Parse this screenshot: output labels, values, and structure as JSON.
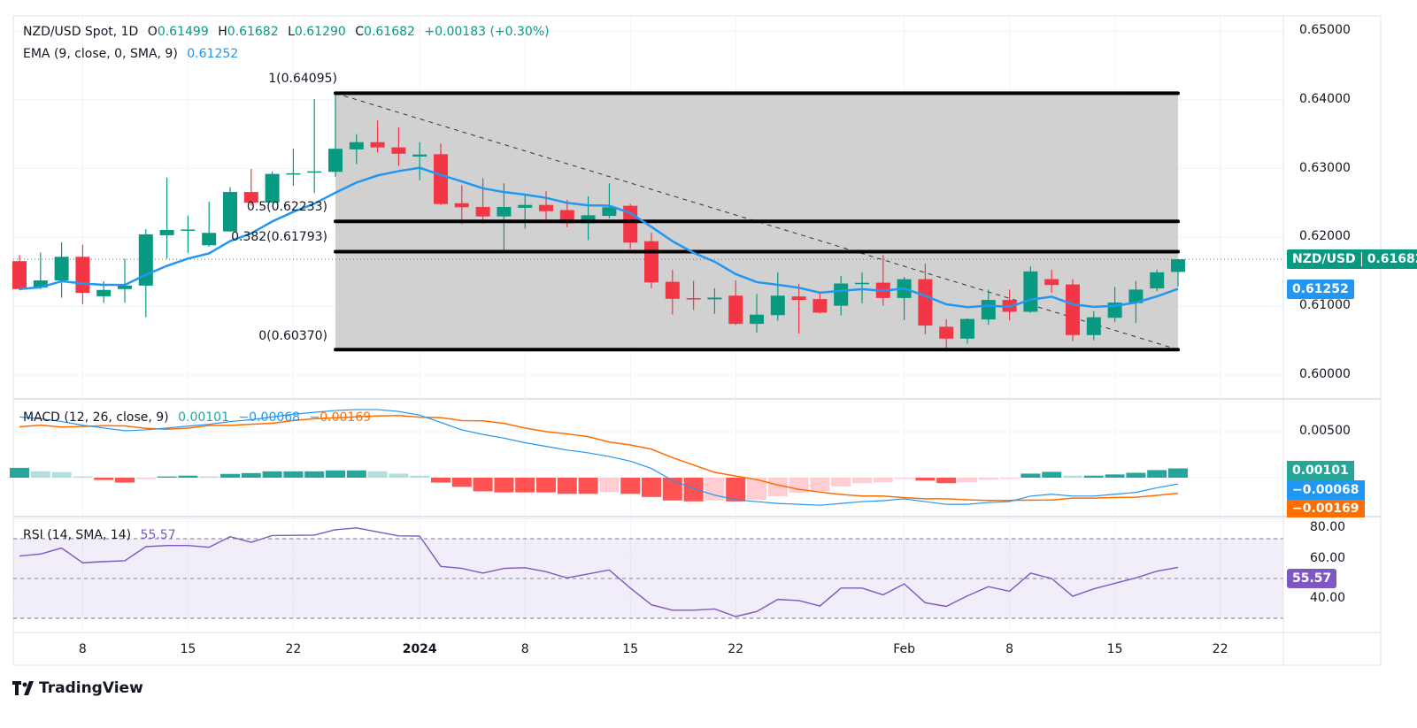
{
  "header": {
    "symbol": "NZD/USD Spot, 1D",
    "open_label": "O",
    "open": "0.61499",
    "high_label": "H",
    "high": "0.61682",
    "low_label": "L",
    "low": "0.61290",
    "close_label": "C",
    "close": "0.61682",
    "change": "+0.00183 (+0.30%)"
  },
  "ema_legend": {
    "label": "EMA (9, close, 0, SMA, 9)",
    "value": "0.61252"
  },
  "macd_legend": {
    "label": "MACD (12, 26, close, 9)",
    "hist": "0.00101",
    "macd": "−0.00068",
    "signal": "−0.00169"
  },
  "rsi_legend": {
    "label": "RSI (14, SMA, 14)",
    "value": "55.57"
  },
  "price_tag": {
    "symbol": "NZD/USD",
    "value": "0.61682"
  },
  "ema_tag": "0.61252",
  "macd_tags": {
    "hist": "0.00101",
    "macd": "−0.00068",
    "signal": "−0.00169"
  },
  "rsi_tag": "55.57",
  "fib_labels": {
    "l1": "1(0.64095)",
    "l05": "0.5(0.62233)",
    "l0382": "0.382(0.61793)",
    "l0": "0(0.60370)"
  },
  "branding": "TradingView",
  "colors": {
    "up": "#089981",
    "down": "#f23645",
    "ema": "#2196f3",
    "macd": "#2196f3",
    "signal": "#ff6d00",
    "rsi": "#7e57c2",
    "hist_up_strong": "#26a69a",
    "hist_up_weak": "#b2dfdb",
    "hist_down_strong": "#ff5252",
    "hist_down_weak": "#ffcdd2"
  },
  "chart_data": {
    "type": "candlestick",
    "symbol": "NZD/USD",
    "interval": "1D",
    "price_axis": {
      "ticks": [
        "0.65000",
        "0.64000",
        "0.63000",
        "0.62000",
        "0.61000",
        "0.60000"
      ],
      "range": [
        0.6,
        0.65
      ]
    },
    "time_axis": {
      "ticks": [
        {
          "label": "8",
          "date": "2023-12-08"
        },
        {
          "label": "15",
          "date": "2023-12-15"
        },
        {
          "label": "22",
          "date": "2023-12-22"
        },
        {
          "label": "2024",
          "date": "2024-01-01"
        },
        {
          "label": "8",
          "date": "2024-01-08"
        },
        {
          "label": "15",
          "date": "2024-01-15"
        },
        {
          "label": "22",
          "date": "2024-01-22"
        },
        {
          "label": "Feb",
          "date": "2024-02-01"
        },
        {
          "label": "8",
          "date": "2024-02-08"
        },
        {
          "label": "15",
          "date": "2024-02-15"
        },
        {
          "label": "22",
          "date": "2024-02-22"
        }
      ]
    },
    "candles_fields": [
      "date",
      "open",
      "high",
      "low",
      "close"
    ],
    "candles": [
      [
        "2023-12-05",
        0.61656,
        0.61744,
        0.6123,
        0.6125
      ],
      [
        "2023-12-06",
        0.61271,
        0.61781,
        0.6125,
        0.61375
      ],
      [
        "2023-12-07",
        0.61375,
        0.61932,
        0.61124,
        0.61718
      ],
      [
        "2023-12-08",
        0.61718,
        0.61894,
        0.61032,
        0.61195
      ],
      [
        "2023-12-11",
        0.61145,
        0.61363,
        0.61049,
        0.61237
      ],
      [
        "2023-12-12",
        0.6125,
        0.61689,
        0.61049,
        0.613
      ],
      [
        "2023-12-13",
        0.613,
        0.6212,
        0.6084,
        0.62045
      ],
      [
        "2023-12-14",
        0.62032,
        0.62869,
        0.61689,
        0.62108
      ],
      [
        "2023-12-15",
        0.62108,
        0.62317,
        0.61773,
        0.62115
      ],
      [
        "2023-12-18",
        0.61886,
        0.62518,
        0.61865,
        0.62066
      ],
      [
        "2023-12-19",
        0.62087,
        0.62731,
        0.62087,
        0.6266
      ],
      [
        "2023-12-20",
        0.6266,
        0.62995,
        0.62463,
        0.62505
      ],
      [
        "2023-12-21",
        0.62505,
        0.62957,
        0.62505,
        0.62923
      ],
      [
        "2023-12-22",
        0.62923,
        0.63288,
        0.6275,
        0.62932
      ],
      [
        "2023-12-25",
        0.62957,
        0.64011,
        0.62643,
        0.6296
      ],
      [
        "2023-12-26",
        0.62953,
        0.64095,
        0.62882,
        0.63288
      ],
      [
        "2023-12-27",
        0.63279,
        0.63501,
        0.63066,
        0.63384
      ],
      [
        "2023-12-28",
        0.63384,
        0.63698,
        0.63233,
        0.63308
      ],
      [
        "2023-12-29",
        0.63308,
        0.63601,
        0.63041,
        0.63216
      ],
      [
        "2024-01-01",
        0.63175,
        0.63384,
        0.62831,
        0.63204
      ],
      [
        "2024-01-02",
        0.63209,
        0.63363,
        0.62472,
        0.62485
      ],
      [
        "2024-01-03",
        0.62497,
        0.62757,
        0.62192,
        0.62438
      ],
      [
        "2024-01-04",
        0.62443,
        0.62861,
        0.622,
        0.62305
      ],
      [
        "2024-01-05",
        0.62305,
        0.62786,
        0.61816,
        0.62443
      ],
      [
        "2024-01-08",
        0.62431,
        0.6261,
        0.62129,
        0.62472
      ],
      [
        "2024-01-09",
        0.62472,
        0.62673,
        0.62234,
        0.62381
      ],
      [
        "2024-01-10",
        0.62397,
        0.62547,
        0.62149,
        0.62205
      ],
      [
        "2024-01-11",
        0.62205,
        0.62597,
        0.61961,
        0.62322
      ],
      [
        "2024-01-12",
        0.62313,
        0.62786,
        0.62275,
        0.62438
      ],
      [
        "2024-01-15",
        0.6246,
        0.62485,
        0.61836,
        0.61924
      ],
      [
        "2024-01-16",
        0.61945,
        0.62067,
        0.61258,
        0.61346
      ],
      [
        "2024-01-17",
        0.61355,
        0.61527,
        0.60882,
        0.61108
      ],
      [
        "2024-01-18",
        0.61117,
        0.61368,
        0.60945,
        0.611
      ],
      [
        "2024-01-19",
        0.611,
        0.61263,
        0.6089,
        0.61125
      ],
      [
        "2024-01-22",
        0.61154,
        0.61376,
        0.60727,
        0.60744
      ],
      [
        "2024-01-23",
        0.60744,
        0.61179,
        0.60614,
        0.60878
      ],
      [
        "2024-01-24",
        0.6087,
        0.61493,
        0.6079,
        0.61154
      ],
      [
        "2024-01-25",
        0.61142,
        0.61326,
        0.60602,
        0.61091
      ],
      [
        "2024-01-26",
        0.61104,
        0.61196,
        0.60895,
        0.60907
      ],
      [
        "2024-01-29",
        0.61007,
        0.61439,
        0.60865,
        0.6133
      ],
      [
        "2024-01-30",
        0.61334,
        0.61493,
        0.61041,
        0.6134
      ],
      [
        "2024-01-31",
        0.61342,
        0.61744,
        0.61007,
        0.6112
      ],
      [
        "2024-02-01",
        0.6112,
        0.61426,
        0.60799,
        0.61393
      ],
      [
        "2024-02-02",
        0.61393,
        0.61619,
        0.60593,
        0.60719
      ],
      [
        "2024-02-05",
        0.60702,
        0.60812,
        0.60372,
        0.6053
      ],
      [
        "2024-02-06",
        0.6053,
        0.60824,
        0.60455,
        0.60815
      ],
      [
        "2024-02-07",
        0.60807,
        0.61242,
        0.60731,
        0.61091
      ],
      [
        "2024-02-08",
        0.61091,
        0.61242,
        0.60794,
        0.60919
      ],
      [
        "2024-02-09",
        0.60919,
        0.61581,
        0.60907,
        0.61506
      ],
      [
        "2024-02-12",
        0.61393,
        0.61531,
        0.61196,
        0.61309
      ],
      [
        "2024-02-13",
        0.61317,
        0.61393,
        0.60493,
        0.60581
      ],
      [
        "2024-02-14",
        0.60581,
        0.60929,
        0.60505,
        0.6084
      ],
      [
        "2024-02-15",
        0.60832,
        0.6128,
        0.60769,
        0.61054
      ],
      [
        "2024-02-16",
        0.61045,
        0.61368,
        0.60756,
        0.61242
      ],
      [
        "2024-02-19",
        0.61259,
        0.61531,
        0.61217,
        0.61493
      ],
      [
        "2024-02-20",
        0.61499,
        0.61682,
        0.6129,
        0.61682
      ]
    ],
    "ema": {
      "period": 9,
      "last": 0.61252
    },
    "current_price": 0.61682,
    "fibonacci": {
      "from_date": "2023-12-26",
      "to_date": "2024-02-20",
      "levels": [
        {
          "ratio": 1,
          "price": 0.64095
        },
        {
          "ratio": 0.5,
          "price": 0.62233
        },
        {
          "ratio": 0.382,
          "price": 0.61793
        },
        {
          "ratio": 0,
          "price": 0.6037
        }
      ]
    },
    "macd": {
      "axis_ticks": [
        "0.00500"
      ],
      "range": [
        -0.0045,
        0.0085
      ],
      "macd_line": [
        0.0066,
        0.0064,
        0.0061,
        0.0057,
        0.0054,
        0.0051,
        0.0052,
        0.0054,
        0.0056,
        0.0058,
        0.0061,
        0.0063,
        0.0066,
        0.0069,
        0.0071,
        0.0073,
        0.0074,
        0.0074,
        0.0072,
        0.0068,
        0.006,
        0.0052,
        0.0047,
        0.0043,
        0.0038,
        0.0034,
        0.003,
        0.0027,
        0.0023,
        0.0018,
        0.001,
        -0.0003,
        -0.0012,
        -0.0019,
        -0.0024,
        -0.0026,
        -0.0028,
        -0.0029,
        -0.003,
        -0.0028,
        -0.0026,
        -0.0025,
        -0.0023,
        -0.0026,
        -0.0029,
        -0.0029,
        -0.0027,
        -0.0026,
        -0.002,
        -0.0018,
        -0.002,
        -0.002,
        -0.0018,
        -0.0016,
        -0.0011,
        -0.00068
      ],
      "histogram": [
        0.00107,
        0.00069,
        0.0006,
        0.00013,
        -0.00025,
        -0.00053,
        -0.00016,
        0.00013,
        0.00022,
        0.00013,
        0.00041,
        0.0005,
        0.00069,
        0.00069,
        0.00069,
        0.00079,
        0.00079,
        0.00069,
        0.00044,
        0.00022,
        -0.00053,
        -0.001,
        -0.00148,
        -0.0016,
        -0.0016,
        -0.0016,
        -0.00176,
        -0.00176,
        -0.00157,
        -0.00176,
        -0.0021,
        -0.00248,
        -0.00258,
        -0.00248,
        -0.00258,
        -0.00239,
        -0.00201,
        -0.00163,
        -0.00144,
        -0.00097,
        -0.0006,
        -0.0005,
        -0.00013,
        -0.00031,
        -0.0006,
        -0.0005,
        -0.00022,
        -0.00013,
        0.00044,
        0.00063,
        0.00022,
        0.00022,
        0.00035,
        0.00053,
        0.00082,
        0.00101
      ]
    },
    "rsi": {
      "axis_ticks": [
        "80.00",
        "60.00",
        "40.00"
      ],
      "bands": [
        30,
        70
      ],
      "range": [
        20,
        85
      ],
      "values": [
        61.3,
        62.3,
        65.3,
        57.9,
        58.5,
        58.9,
        66.0,
        66.6,
        66.6,
        65.7,
        71.0,
        68.2,
        71.6,
        71.7,
        71.8,
        74.5,
        75.4,
        73.4,
        71.4,
        71.3,
        56.1,
        55.1,
        52.7,
        55.1,
        55.4,
        53.4,
        50.3,
        52.3,
        54.3,
        45.2,
        36.8,
        34.1,
        34.1,
        34.7,
        30.9,
        33.4,
        39.5,
        38.9,
        36.2,
        45.2,
        45.2,
        41.8,
        47.3,
        37.8,
        36.0,
        41.3,
        45.9,
        43.6,
        52.7,
        50.0,
        41.1,
        44.8,
        47.6,
        50.3,
        53.7,
        55.57
      ]
    }
  }
}
